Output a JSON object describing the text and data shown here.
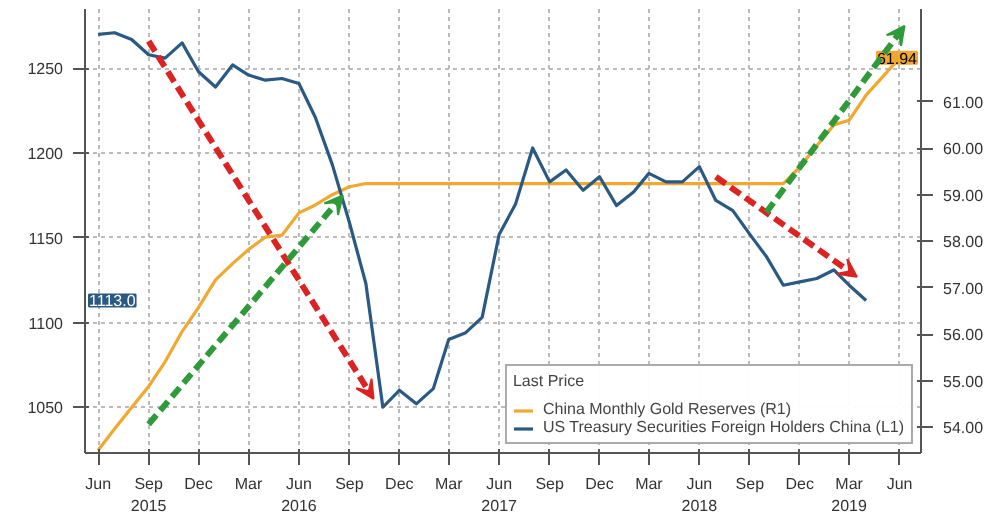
{
  "chart_data": {
    "type": "line",
    "xlim": [
      "2015-05-08",
      "2019-07-10"
    ],
    "ylim": [
      1023,
      1285
    ],
    "yticks": [
      1050,
      1100,
      1150,
      1200,
      1250
    ],
    "y2lim": [
      53.45,
      62.99
    ],
    "y2ticks": [
      {
        "value": 54,
        "label": "54.00"
      },
      {
        "value": 55,
        "label": "55.00"
      },
      {
        "value": 56,
        "label": "56.00"
      },
      {
        "value": 57,
        "label": "57.00"
      },
      {
        "value": 58,
        "label": "58.00"
      },
      {
        "value": 59,
        "label": "59.00"
      },
      {
        "value": 60,
        "label": "60.00"
      },
      {
        "value": 61,
        "label": "61.00"
      }
    ],
    "xticks": [
      {
        "value": "2015-06",
        "label": "Jun"
      },
      {
        "value": "2015-09",
        "label": "Sep\n2015"
      },
      {
        "value": "2015-12",
        "label": "Dec"
      },
      {
        "value": "2016-03",
        "label": "Mar"
      },
      {
        "value": "2016-06",
        "label": "Jun\n2016"
      },
      {
        "value": "2016-09",
        "label": "Sep"
      },
      {
        "value": "2016-12",
        "label": "Dec"
      },
      {
        "value": "2017-03",
        "label": "Mar"
      },
      {
        "value": "2017-06",
        "label": "Jun\n2017"
      },
      {
        "value": "2017-09",
        "label": "Sep"
      },
      {
        "value": "2017-12",
        "label": "Dec"
      },
      {
        "value": "2018-03",
        "label": "Mar"
      },
      {
        "value": "2018-06",
        "label": "Jun\n2018"
      },
      {
        "value": "2018-09",
        "label": "Sep"
      },
      {
        "value": "2018-12",
        "label": "Dec"
      },
      {
        "value": "2019-03",
        "label": "Mar\n2019"
      },
      {
        "value": "2019-06",
        "label": "Jun"
      }
    ],
    "grid": true,
    "legend": "bottom right",
    "legend_title": "Last Price",
    "marker": "none",
    "line_style": "solid",
    "annotations": [
      "61.94",
      "1113.0"
    ],
    "series": [
      {
        "name": "China Monthly Gold Reserves (R1)",
        "color": "#f0a830",
        "axis": "y2",
        "x": [
          "2015-06",
          "2015-07",
          "2015-08",
          "2015-09",
          "2015-10",
          "2015-11",
          "2015-12",
          "2016-01",
          "2016-02",
          "2016-03",
          "2016-04",
          "2016-05",
          "2016-06",
          "2016-07",
          "2016-08",
          "2016-09",
          "2016-10",
          "2016-11",
          "2016-12",
          "2017-01",
          "2017-02",
          "2017-03",
          "2017-04",
          "2017-05",
          "2017-06",
          "2017-07",
          "2017-08",
          "2017-09",
          "2017-10",
          "2017-11",
          "2017-12",
          "2018-01",
          "2018-02",
          "2018-03",
          "2018-04",
          "2018-05",
          "2018-06",
          "2018-07",
          "2018-08",
          "2018-09",
          "2018-10",
          "2018-11",
          "2018-12",
          "2019-01",
          "2019-02",
          "2019-03",
          "2019-04",
          "2019-05",
          "2019-06"
        ],
        "values": [
          53.51,
          53.97,
          54.43,
          54.88,
          55.41,
          56.06,
          56.58,
          57.17,
          57.52,
          57.82,
          58.09,
          58.13,
          58.61,
          58.78,
          59.0,
          59.17,
          59.24,
          59.24,
          59.24,
          59.24,
          59.24,
          59.24,
          59.24,
          59.24,
          59.24,
          59.24,
          59.24,
          59.24,
          59.24,
          59.24,
          59.24,
          59.24,
          59.24,
          59.24,
          59.24,
          59.24,
          59.24,
          59.24,
          59.24,
          59.24,
          59.24,
          59.24,
          59.59,
          60.05,
          60.5,
          60.6,
          61.14,
          61.53,
          61.94
        ]
      },
      {
        "name": "US Treasury Securities Foreign Holders China (L1)",
        "color": "#2a5a84",
        "x": [
          "2015-06",
          "2015-07",
          "2015-08",
          "2015-09",
          "2015-10",
          "2015-11",
          "2015-12",
          "2016-01",
          "2016-02",
          "2016-03",
          "2016-04",
          "2016-05",
          "2016-06",
          "2016-07",
          "2016-08",
          "2016-09",
          "2016-10",
          "2016-11",
          "2016-12",
          "2017-01",
          "2017-02",
          "2017-03",
          "2017-04",
          "2017-05",
          "2017-06",
          "2017-07",
          "2017-08",
          "2017-09",
          "2017-10",
          "2017-11",
          "2017-12",
          "2018-01",
          "2018-02",
          "2018-03",
          "2018-04",
          "2018-05",
          "2018-06",
          "2018-07",
          "2018-08",
          "2018-09",
          "2018-10",
          "2018-11",
          "2018-12",
          "2019-01",
          "2019-02",
          "2019-03",
          "2019-04"
        ],
        "values": [
          1270,
          1271,
          1267,
          1258,
          1256,
          1265,
          1248,
          1239,
          1252,
          1246,
          1243,
          1244,
          1241,
          1221,
          1193,
          1159,
          1123,
          1050,
          1060,
          1052,
          1061,
          1090,
          1094,
          1103,
          1152,
          1170,
          1203,
          1183,
          1190,
          1178,
          1186,
          1169,
          1177,
          1188,
          1183,
          1183,
          1192,
          1172,
          1166,
          1152,
          1139,
          1122,
          1124,
          1126,
          1131,
          1122,
          1113
        ]
      }
    ]
  }
}
